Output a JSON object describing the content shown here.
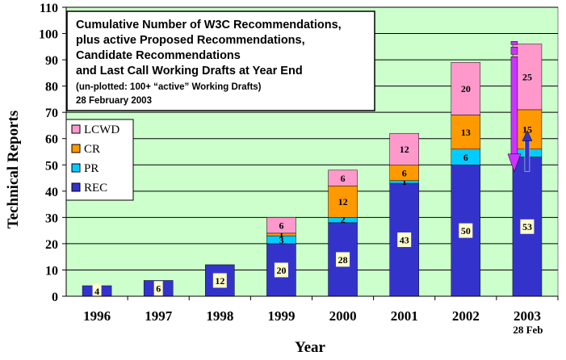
{
  "chart_data": {
    "type": "bar",
    "stacked": true,
    "title_lines": [
      "Cumulative Number of W3C Recommendations,",
      "plus active Proposed Recommendations,",
      "Candidate Recommendations",
      "and Last Call Working Drafts at Year End"
    ],
    "subtitle_lines": [
      "(un-plotted: 100+ “active” Working Drafts)",
      "28 February 2003"
    ],
    "xlabel": "Year",
    "ylabel": "Technical Reports",
    "ylim": [
      0,
      110
    ],
    "yticks": [
      0,
      10,
      20,
      30,
      40,
      50,
      60,
      70,
      80,
      90,
      100,
      110
    ],
    "grid": true,
    "legend_position": "left",
    "categories": [
      "1996",
      "1997",
      "1998",
      "1999",
      "2000",
      "2001",
      "2002",
      "2003"
    ],
    "category_sublabels": [
      "",
      "",
      "",
      "",
      "",
      "",
      "",
      "28 Feb"
    ],
    "series": [
      {
        "name": "REC",
        "color": "#3333cc",
        "values": [
          4,
          6,
          12,
          20,
          28,
          43,
          50,
          53
        ],
        "labels": [
          "4",
          "6",
          "12",
          "20",
          "28",
          "43",
          "50",
          "53"
        ]
      },
      {
        "name": "PR",
        "color": "#00ccff",
        "values": [
          0,
          0,
          0,
          3,
          2,
          1,
          6,
          3
        ],
        "labels": [
          "",
          "",
          "",
          "3",
          "2",
          "1",
          "6",
          "3"
        ]
      },
      {
        "name": "CR",
        "color": "#ff9900",
        "values": [
          0,
          0,
          0,
          1,
          12,
          6,
          13,
          15
        ],
        "labels": [
          "",
          "",
          "",
          "1",
          "12",
          "6",
          "13",
          "15"
        ]
      },
      {
        "name": "LCWD",
        "color": "#ff99cc",
        "values": [
          0,
          0,
          0,
          6,
          6,
          12,
          20,
          25
        ],
        "labels": [
          "",
          "",
          "",
          "6",
          "6",
          "12",
          "20",
          "25"
        ]
      }
    ],
    "legend_order": [
      "LCWD",
      "CR",
      "PR",
      "REC"
    ],
    "plot_background": "#ccffcc",
    "annotations": [
      {
        "type": "down-arrow",
        "color": "#cc33ff",
        "near": "2003"
      },
      {
        "type": "up-arrow",
        "color": "#3333cc",
        "near": "2003"
      }
    ]
  }
}
